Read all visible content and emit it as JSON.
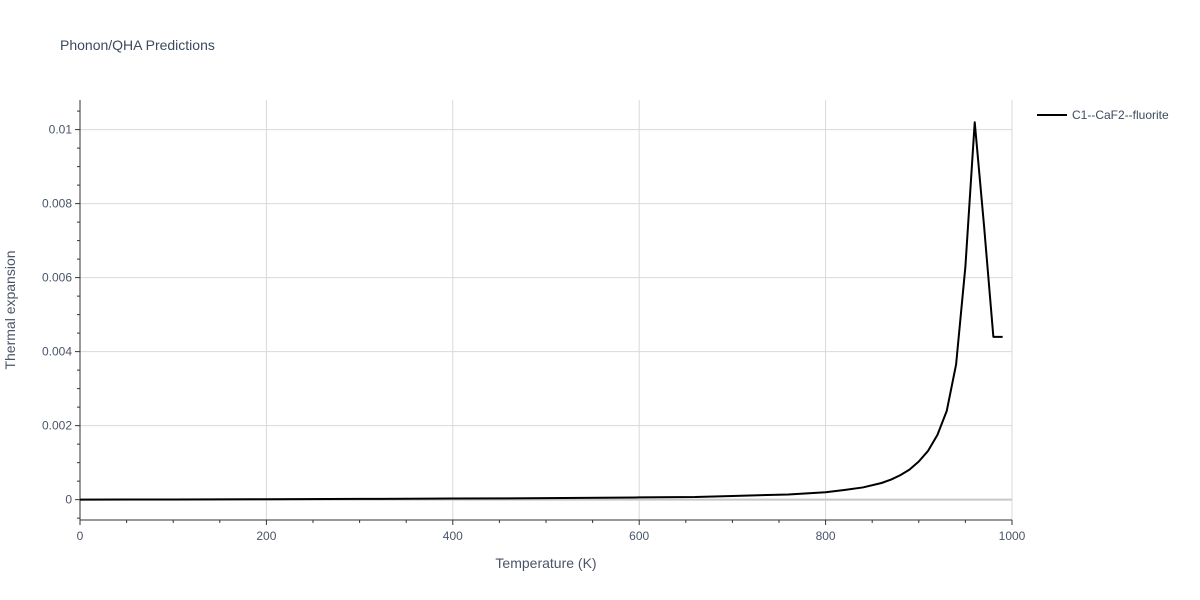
{
  "chart_data": {
    "type": "line",
    "title": "Phonon/QHA Predictions",
    "xlabel": "Temperature (K)",
    "ylabel": "Thermal expansion",
    "xlim": [
      0,
      1000
    ],
    "ylim": [
      -0.00055,
      0.0108
    ],
    "grid": true,
    "legend_position": "top-right",
    "x_ticks": [
      0,
      200,
      400,
      600,
      800,
      1000
    ],
    "x_tick_labels": [
      "0",
      "200",
      "400",
      "600",
      "800",
      "1000"
    ],
    "y_ticks": [
      0,
      0.002,
      0.004,
      0.006,
      0.008,
      0.01
    ],
    "y_tick_labels": [
      "0",
      "0.002",
      "0.004",
      "0.006",
      "0.008",
      "0.01"
    ],
    "series": [
      {
        "name": "C1--CaF2--fluorite",
        "color": "#000000",
        "x": [
          0,
          100,
          200,
          300,
          400,
          500,
          600,
          660,
          700,
          760,
          800,
          820,
          840,
          860,
          870,
          880,
          890,
          900,
          910,
          920,
          930,
          940,
          950,
          960,
          970,
          980,
          990
        ],
        "y": [
          0,
          5e-06,
          1.2e-05,
          2e-05,
          3e-05,
          4e-05,
          6e-05,
          7e-05,
          0.0001,
          0.00014,
          0.0002,
          0.00026,
          0.00033,
          0.00045,
          0.00054,
          0.00066,
          0.00081,
          0.00103,
          0.00132,
          0.00175,
          0.0024,
          0.00365,
          0.0063,
          0.0102,
          0.0074,
          0.0044,
          0.0044
        ]
      }
    ]
  }
}
